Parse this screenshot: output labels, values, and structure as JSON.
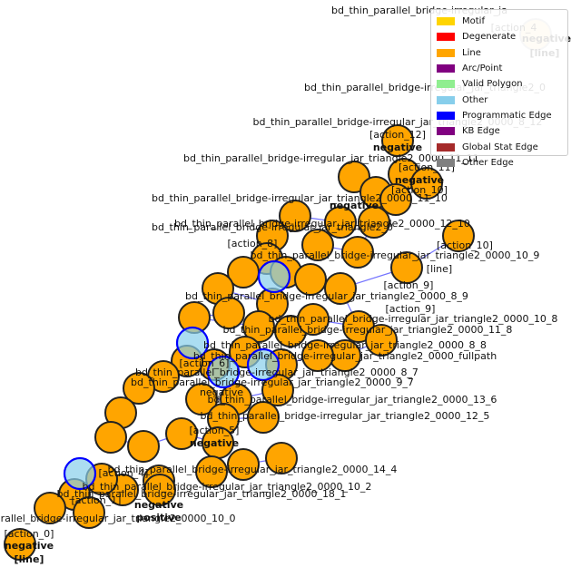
{
  "legend": {
    "items": [
      {
        "label": "Motif",
        "color": "#ffd400"
      },
      {
        "label": "Degenerate",
        "color": "#ff0000"
      },
      {
        "label": "Line",
        "color": "#ffa500"
      },
      {
        "label": "Arc/Point",
        "color": "#800080"
      },
      {
        "label": "Valid Polygon",
        "color": "#90ee90"
      },
      {
        "label": "Other",
        "color": "#87ceeb"
      },
      {
        "label": "Programmatic Edge",
        "color": "#0000ff"
      },
      {
        "label": "KB Edge",
        "color": "#800080"
      },
      {
        "label": "Global Stat Edge",
        "color": "#a52a2a"
      },
      {
        "label": "Other Edge",
        "color": "#808080"
      }
    ]
  },
  "graph": {
    "node_fill": "#ffa500",
    "other_fill": "#87ceeb",
    "edge_color": "#0000ff",
    "labels": [
      "bd_thin_parallel_bridge-irregular_ja",
      "[action_4",
      "negative",
      "[line]",
      "bd_thin_parallel_bridge-irregular_jar_triangle2_0",
      "bd_thin_parallel_bridge-irregular_jar_triangle2_0000_8_12",
      "[action_12]",
      "negative",
      "bd_thin_parallel_bridge-irregular_jar_triangle2_0000_11_11",
      "[action_11]",
      "negative",
      "bd_thin_parallel_bridge-irregular_jar_triangle2_0000_11_10",
      "[action_10]",
      "negative",
      "bd_thin_parallel_bridge-irregular_jar_triangle2_0000_12_10",
      "bd_thin_parallel_bridge-irregular_jar_triangle2_0",
      "[action_10]",
      "[action_8]",
      "bd_thin_parallel_bridge-irregular_jar_triangle2_0000_10_9",
      "[action_9]",
      "[line]",
      "bd_thin_parallel_bridge-irregular_jar_triangle2_0000_8_9",
      "[action_9]",
      "bd_thin_parallel_bridge-irregular_jar_triangle2_0000_10_8",
      "bd_thin_parallel_bridge-irregular_jar_triangle2_0000_11_8",
      "bd_thin_parallel_bridge-irregular_jar_triangle2_0000_8_8",
      "bd_thin_parallel_bridge-irregular_jar_triangle2_0000_fullpath",
      "bd_thin_parallel_bridge-irregular_jar_triangle2_0000_8_7",
      "bd_thin_parallel_bridge-irregular_jar_triangle2_0000_9_7",
      "[action_6]",
      "negative",
      "bd_thin_parallel_bridge-irregular_jar_triangle2_0000_13_6",
      "bd_thin_parallel_bridge-irregular_jar_triangle2_0000_12_5",
      "[action_5]",
      "negative",
      "bd_thin_parallel_bridge-irregular_jar_triangle2_0000_14_4",
      "[action_4]",
      "bd_thin_parallel_bridge-irregular_jar_triangle2_0000_10_2",
      "bd_thin_parallel_bridge-irregular_jar_triangle2_0000_18_1",
      "[action_1]",
      "negative",
      "positive",
      "bd_thin_parallel_bridge-irregular_jar_triangle2_0000_10_0",
      "[action_0]",
      "negative",
      "[line]"
    ]
  }
}
